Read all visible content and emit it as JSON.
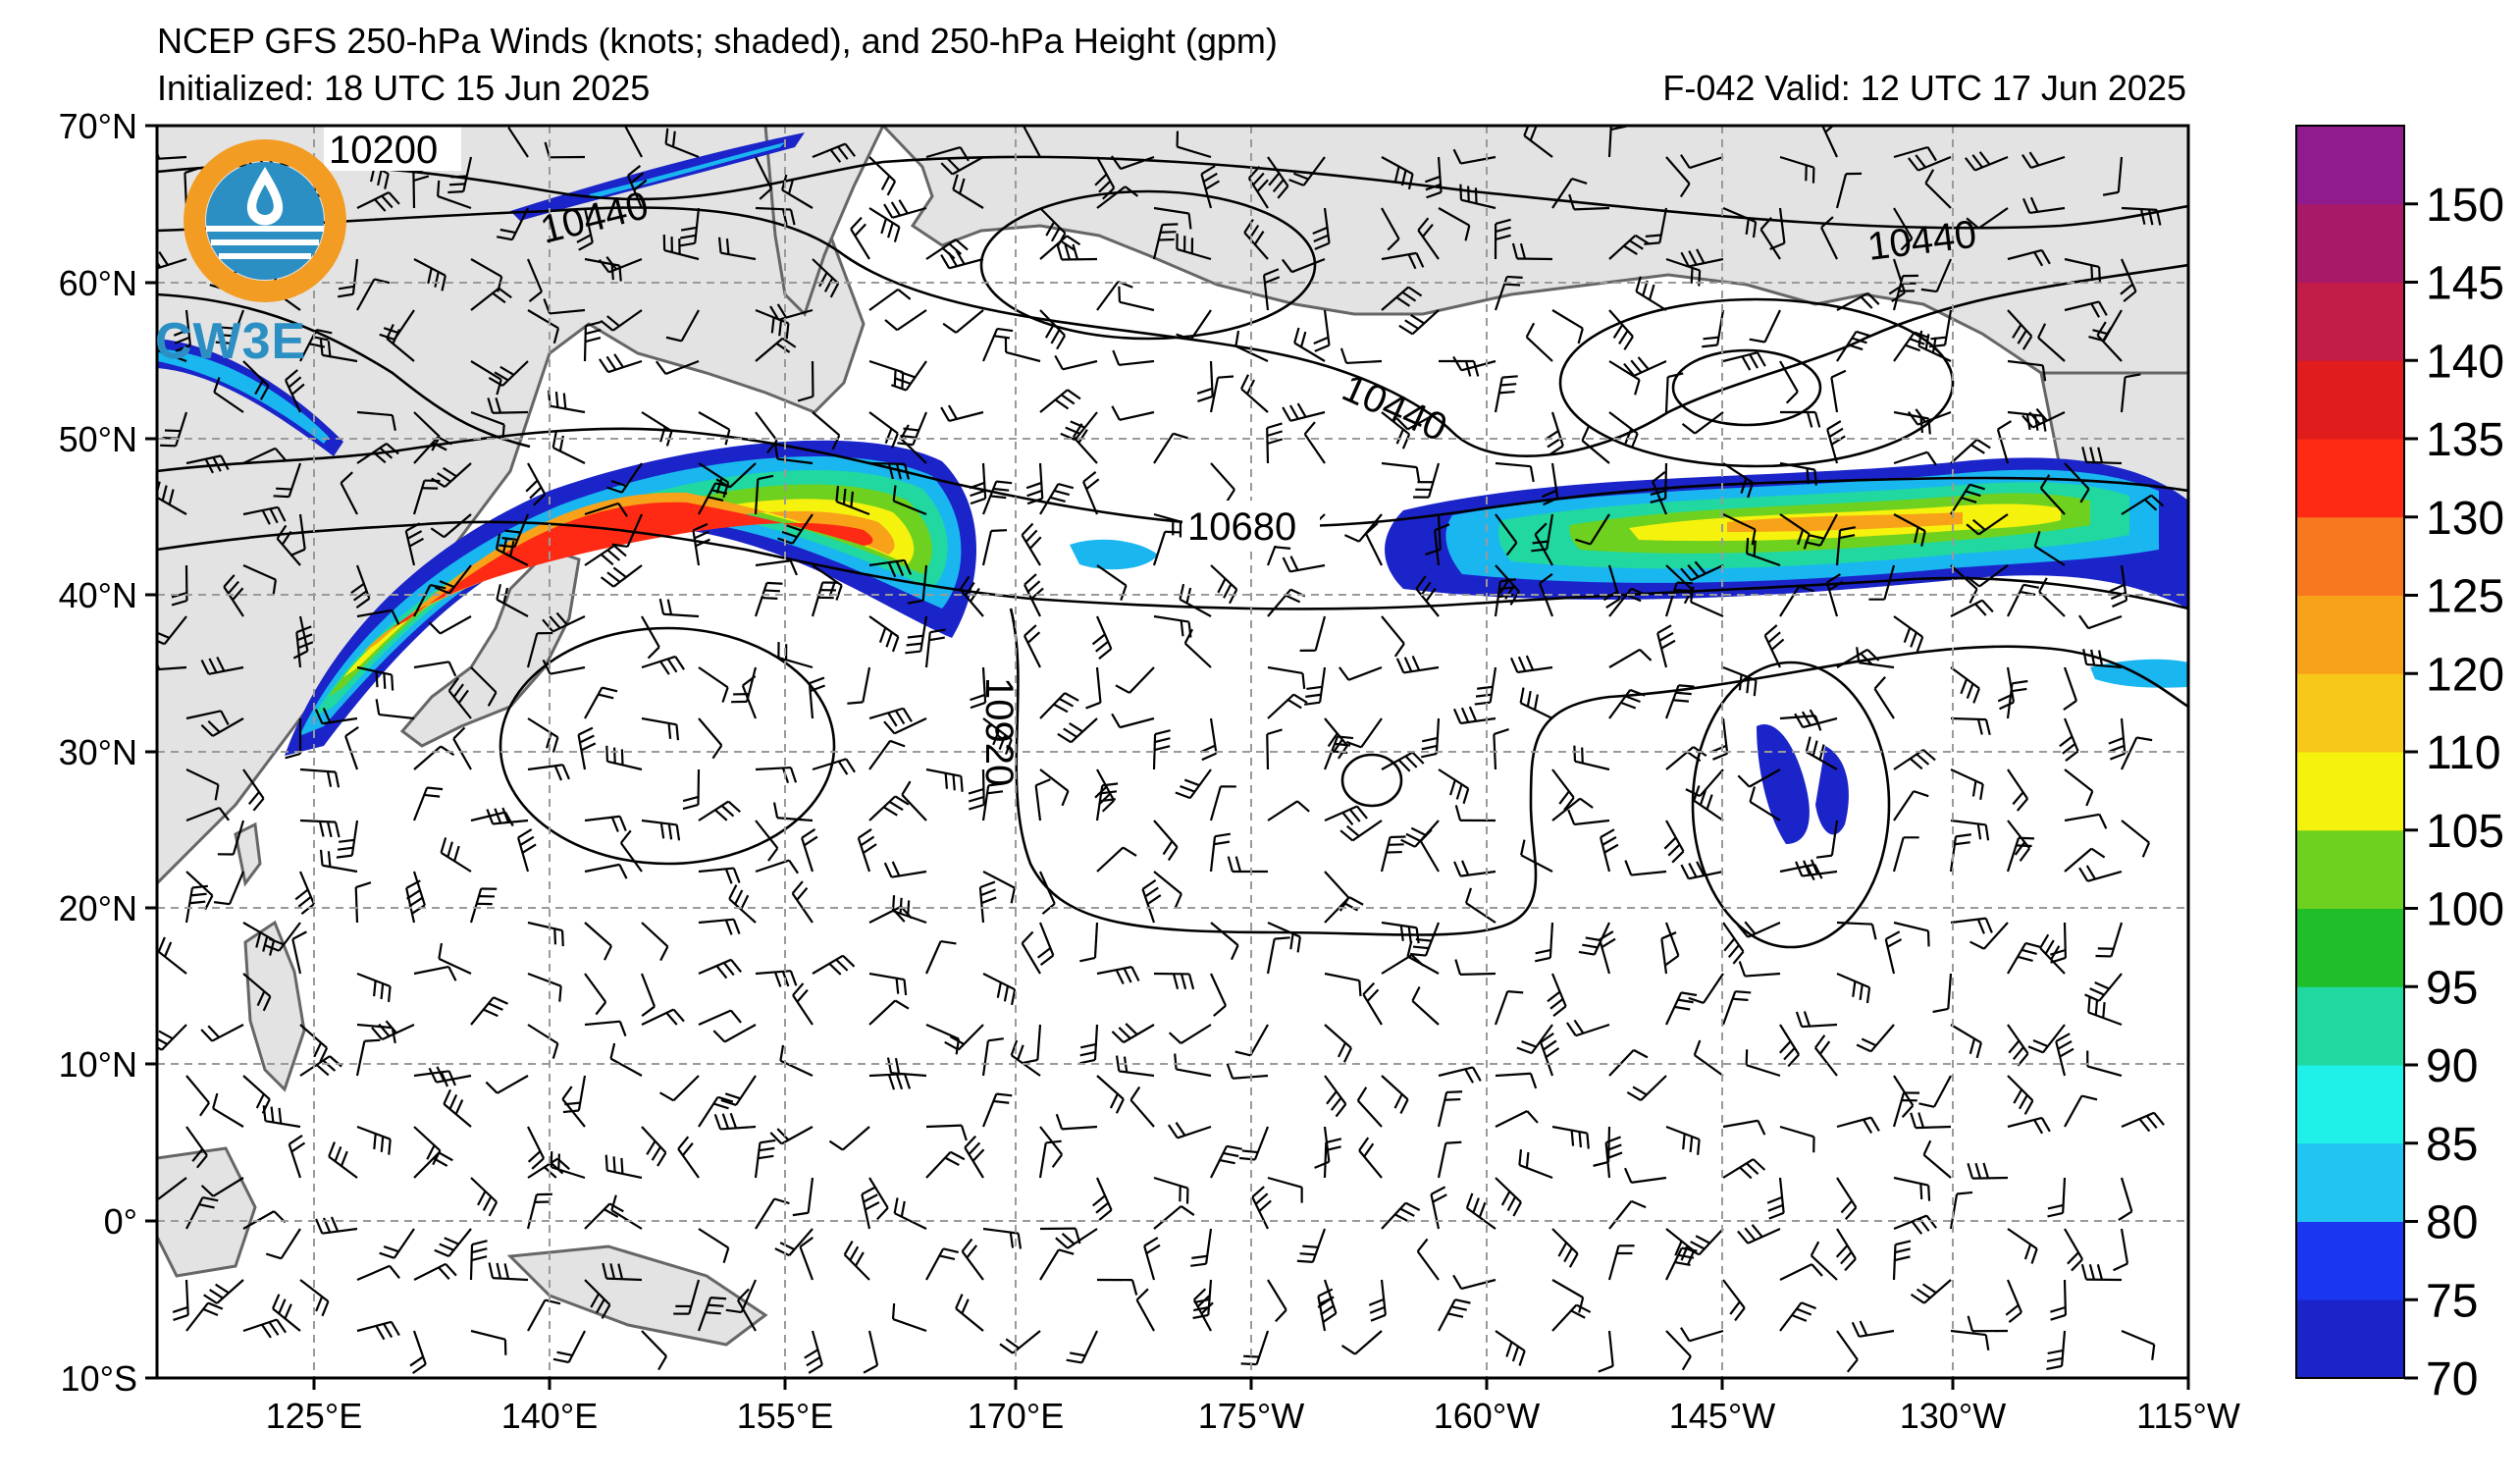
{
  "title": {
    "line1": "NCEP GFS 250-hPa Winds (knots; shaded), and 250-hPa Height (gpm)",
    "line2": "Initialized: 18 UTC 15 Jun 2025",
    "valid": "F-042  Valid: 12 UTC 17 Jun 2025"
  },
  "logo": {
    "text": "CW3E",
    "icon": "water-drop-sun-icon",
    "colors": {
      "ring": "#f39c24",
      "body": "#2c8fc3"
    }
  },
  "axes": {
    "lat_labels": [
      "70°N",
      "60°N",
      "50°N",
      "40°N",
      "30°N",
      "20°N",
      "10°N",
      "0°",
      "10°S"
    ],
    "lon_labels": [
      "125°E",
      "140°E",
      "155°E",
      "170°E",
      "175°W",
      "160°W",
      "145°W",
      "130°W",
      "115°W"
    ]
  },
  "contour_labels": [
    {
      "text": "10200"
    },
    {
      "text": "10440"
    },
    {
      "text": "10440"
    },
    {
      "text": "10440"
    },
    {
      "text": "10680"
    },
    {
      "text": "10920"
    }
  ],
  "colorbar": {
    "ticks": [
      "150",
      "145",
      "140",
      "135",
      "130",
      "125",
      "120",
      "110",
      "105",
      "100",
      "95",
      "90",
      "85",
      "80",
      "75",
      "70"
    ],
    "colors": [
      "#1b24c8",
      "#1a36f0",
      "#22c4f2",
      "#1ff0e8",
      "#20d8a0",
      "#1fbf2a",
      "#6fd11f",
      "#f5f20e",
      "#f7c81a",
      "#f8a21a",
      "#f87820",
      "#ff2a14",
      "#e01c1c",
      "#c21c48",
      "#a81a68",
      "#901b8e"
    ]
  },
  "colors": {
    "land": "#e3e3e3",
    "ocean": "#ffffff",
    "grid": "#9a9a9a",
    "jet_core": "#ff2a14"
  }
}
